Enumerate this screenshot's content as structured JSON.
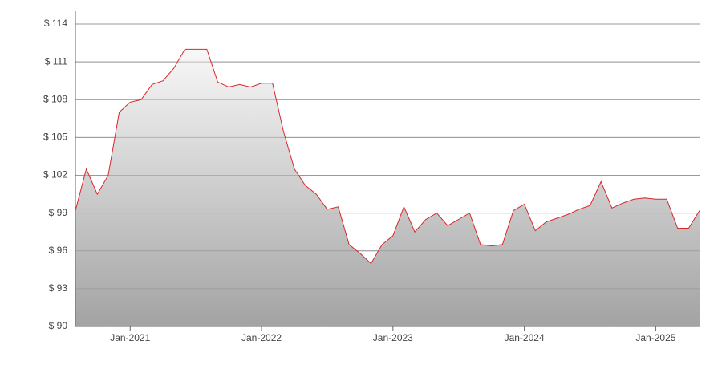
{
  "chart_data": {
    "type": "area",
    "x": [
      "2020-08",
      "2020-09",
      "2020-10",
      "2020-11",
      "2020-12",
      "2021-01",
      "2021-02",
      "2021-03",
      "2021-04",
      "2021-05",
      "2021-06",
      "2021-07",
      "2021-08",
      "2021-09",
      "2021-10",
      "2021-11",
      "2021-12",
      "2022-01",
      "2022-02",
      "2022-03",
      "2022-04",
      "2022-05",
      "2022-06",
      "2022-07",
      "2022-08",
      "2022-09",
      "2022-10",
      "2022-11",
      "2022-12",
      "2023-01",
      "2023-02",
      "2023-03",
      "2023-04",
      "2023-05",
      "2023-06",
      "2023-07",
      "2023-08",
      "2023-09",
      "2023-10",
      "2023-11",
      "2023-12",
      "2024-01",
      "2024-02",
      "2024-03",
      "2024-04",
      "2024-05",
      "2024-06",
      "2024-07",
      "2024-08",
      "2024-09",
      "2024-10",
      "2024-11",
      "2024-12",
      "2025-01",
      "2025-02",
      "2025-03",
      "2025-04",
      "2025-05"
    ],
    "values": [
      99.2,
      102.5,
      100.5,
      102,
      107,
      107.8,
      108,
      109.2,
      109.5,
      110.5,
      112,
      112,
      112,
      109.4,
      109,
      109.2,
      109,
      109.3,
      109.3,
      105.5,
      102.5,
      101.2,
      100.5,
      99.3,
      99.5,
      96.5,
      95.8,
      95,
      96.5,
      97.2,
      99.5,
      97.5,
      98.5,
      99,
      98,
      98.5,
      99,
      96.5,
      96.4,
      96.5,
      99.2,
      99.7,
      97.6,
      98.3,
      98.6,
      98.9,
      99.3,
      99.6,
      101.5,
      99.4,
      99.8,
      100.1,
      100.2,
      100.1,
      100.1,
      97.8,
      97.8,
      99.2
    ],
    "color": "#d9262c",
    "xlim": [
      "2020-08",
      "2025-05"
    ],
    "xticks": [
      {
        "value": "2021-01",
        "label": "Jan-2021"
      },
      {
        "value": "2022-01",
        "label": "Jan-2022"
      },
      {
        "value": "2023-01",
        "label": "Jan-2023"
      },
      {
        "value": "2024-01",
        "label": "Jan-2024"
      },
      {
        "value": "2025-01",
        "label": "Jan-2025"
      }
    ],
    "ylim": [
      90,
      114
    ],
    "yticks": [
      {
        "value": 90,
        "label": "$ 90"
      },
      {
        "value": 93,
        "label": "$ 93"
      },
      {
        "value": 96,
        "label": "$ 96"
      },
      {
        "value": 99,
        "label": "$ 99"
      },
      {
        "value": 102,
        "label": "$ 102"
      },
      {
        "value": 105,
        "label": "$ 105"
      },
      {
        "value": 108,
        "label": "$ 108"
      },
      {
        "value": 111,
        "label": "$ 111"
      },
      {
        "value": 114,
        "label": "$ 114"
      }
    ],
    "grid": true
  }
}
